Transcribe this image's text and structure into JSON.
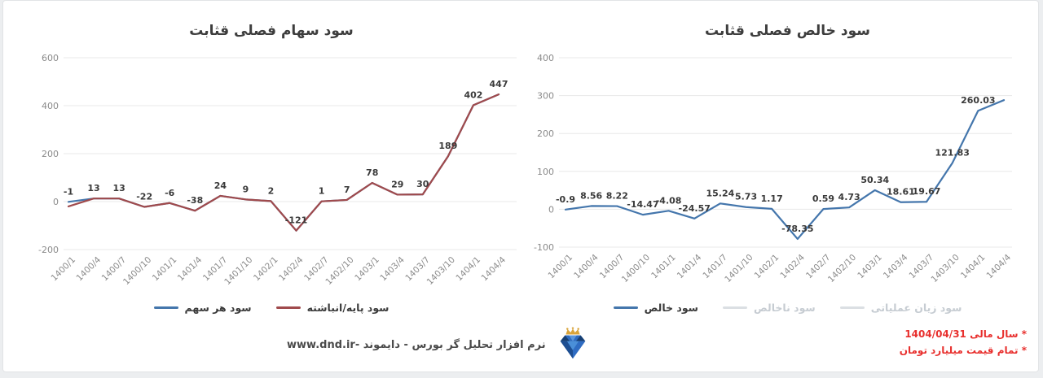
{
  "page": {
    "background": "#eceef0",
    "card_background": "#ffffff",
    "accent_red": "#e8302e",
    "line_blue": "#4476ac",
    "line_red": "#a04a4c",
    "disabled_gray": "#c6ccd2"
  },
  "chart_data": [
    {
      "type": "line",
      "title": "سود سهام فصلی قثابت",
      "categories": [
        "1400/1",
        "1400/4",
        "1400/7",
        "1400/10",
        "1401/1",
        "1401/4",
        "1401/7",
        "1401/10",
        "1402/1",
        "1402/4",
        "1402/7",
        "1402/10",
        "1403/1",
        "1403/4",
        "1403/7",
        "1403/10",
        "1404/1",
        "1404/4"
      ],
      "ylim": [
        -200,
        600
      ],
      "yticks": [
        600,
        400,
        200,
        0,
        -200
      ],
      "grid": true,
      "legend_position": "bottom",
      "series": [
        {
          "name": "سود هر سهم",
          "color": "#4476ac",
          "values": [
            -1,
            13,
            13,
            -22,
            -6,
            -38,
            24,
            9,
            2,
            -121,
            1,
            7,
            78,
            29,
            30,
            189,
            402,
            447
          ],
          "labels": [
            "-1",
            "13",
            "13",
            "-22",
            "-6",
            "-38",
            "24",
            "9",
            "2",
            "-121",
            "1",
            "7",
            "78",
            "29",
            "30",
            "189",
            "402",
            "447"
          ]
        },
        {
          "name": "سود پایه/انباشته",
          "color": "#a04a4c",
          "values": [
            -20,
            13,
            13,
            -22,
            -6,
            -38,
            24,
            9,
            2,
            -121,
            1,
            7,
            78,
            29,
            30,
            189,
            402,
            447
          ],
          "labels": [],
          "note": "first value estimated from plot; series overlaps سود هر سهم from second point onward"
        }
      ]
    },
    {
      "type": "line",
      "title": "سود خالص فصلی قثابت",
      "categories": [
        "1400/1",
        "1400/4",
        "1400/7",
        "1400/10",
        "1401/1",
        "1401/4",
        "1401/7",
        "1401/10",
        "1402/1",
        "1402/4",
        "1402/7",
        "1402/10",
        "1403/1",
        "1403/4",
        "1403/7",
        "1403/10",
        "1404/1",
        "1404/4"
      ],
      "ylim": [
        -100,
        400
      ],
      "yticks": [
        400,
        300,
        200,
        100,
        0,
        -100
      ],
      "grid": true,
      "legend_position": "bottom",
      "series": [
        {
          "name": "سود خالص",
          "color": "#4476ac",
          "values": [
            -0.9,
            8.56,
            8.22,
            -14.47,
            -4.08,
            -24.57,
            15.24,
            5.73,
            1.17,
            -78.35,
            0.59,
            4.73,
            50.34,
            18.61,
            19.67,
            121.83,
            260.03,
            288
          ],
          "labels": [
            "-0.9",
            "8.56",
            "8.22",
            "-14.47",
            "-4.08",
            "-24.57",
            "15.24",
            "5.73",
            "1.17",
            "-78.35",
            "0.59",
            "4.73",
            "50.34",
            "18.61",
            "19.67",
            "121.83",
            "260.03",
            ""
          ],
          "note": "last value (1404/4) unlabeled on chart, estimated from gridlines"
        },
        {
          "name": "سود ناخالص",
          "color": "#dbdfe3",
          "hidden": true,
          "values": [],
          "labels": []
        },
        {
          "name": "سود زیان عملیاتی",
          "color": "#dbdfe3",
          "hidden": true,
          "values": [],
          "labels": []
        }
      ]
    }
  ],
  "footer": {
    "text": "نرم افزار تحلیل گر بورس - دایموند -www.dnd.ir",
    "logo": "diamond-crown-logo"
  },
  "notes": {
    "line1": "* سال مالی 1404/04/31",
    "line2": "* تمام قیمت میلیارد تومان",
    "color": "#e8302e"
  }
}
